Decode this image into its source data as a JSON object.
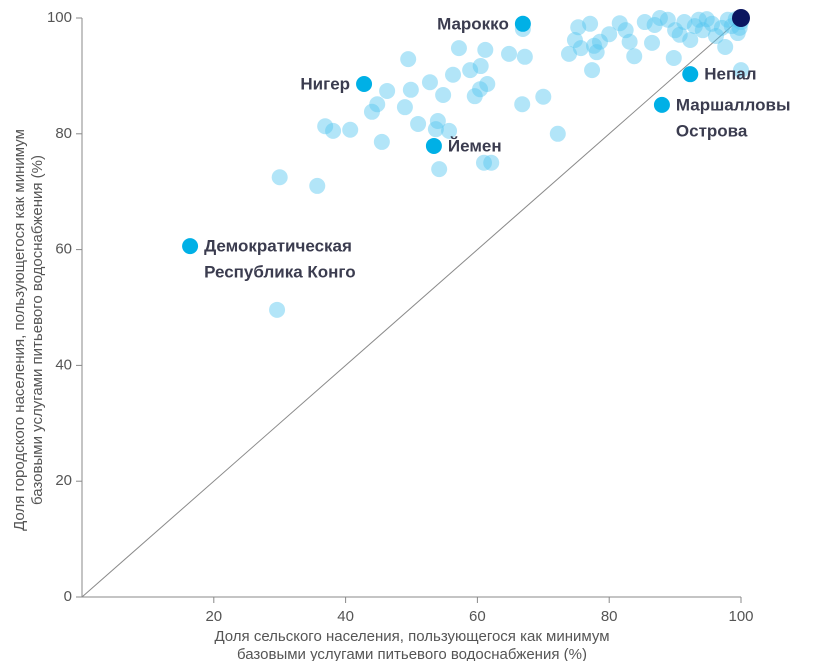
{
  "chart_data": {
    "type": "scatter",
    "xlabel": [
      "Доля сельского  населения, пользующегося как минимум",
      "базовыми услугами питьевого водоснабжения (%)"
    ],
    "ylabel": [
      "Доля городского населения, пользующегося как минимум",
      "базовыми услугами питьевого водоснабжения (%)"
    ],
    "xlim": [
      0,
      100
    ],
    "ylim": [
      0,
      100
    ],
    "xticks": [
      20,
      40,
      60,
      80,
      100
    ],
    "yticks": [
      0,
      20,
      40,
      60,
      80,
      100
    ],
    "series": [
      {
        "color": "#54c6ef",
        "x": [
          30.0,
          35.7,
          29.6,
          36.9,
          38.1,
          40.7,
          45.5,
          44.0,
          44.8,
          46.3,
          49.0,
          49.9,
          49.5,
          51.0,
          52.8,
          53.7,
          54.0,
          54.2,
          54.8,
          55.7,
          56.3,
          57.2,
          58.9,
          59.6,
          60.4,
          61.2,
          61.5,
          61.0,
          62.1,
          60.5,
          64.8,
          66.8,
          66.9,
          67.2,
          70.0,
          72.2,
          73.9,
          74.8,
          75.3,
          75.7,
          77.1,
          77.4,
          77.7,
          78.1,
          78.6,
          80.0,
          81.6,
          82.5,
          83.1,
          83.8,
          85.4,
          86.5,
          86.9,
          87.7,
          88.9,
          89.8,
          90.0,
          90.7,
          91.4,
          92.3,
          93.0,
          93.6,
          94.2,
          94.8,
          95.6,
          96.2,
          97.1,
          97.6,
          98.0,
          98.6,
          99.2,
          99.8,
          100,
          100,
          99.5
        ],
        "values": [
          72.5,
          71.0,
          49.6,
          81.3,
          80.5,
          80.7,
          78.6,
          83.8,
          85.1,
          87.4,
          84.6,
          87.6,
          92.9,
          81.7,
          88.9,
          80.8,
          82.2,
          73.9,
          86.7,
          80.5,
          90.2,
          94.8,
          91.0,
          86.5,
          87.7,
          94.5,
          88.6,
          75.0,
          75.0,
          91.7,
          93.8,
          85.1,
          98.1,
          93.3,
          86.4,
          80.0,
          93.8,
          96.2,
          98.4,
          94.8,
          99.0,
          91.0,
          95.2,
          94.1,
          95.9,
          97.2,
          99.1,
          97.9,
          95.9,
          93.4,
          99.3,
          95.7,
          98.8,
          100,
          99.7,
          93.1,
          97.9,
          97.1,
          99.3,
          96.2,
          98.6,
          99.7,
          97.9,
          99.8,
          99.0,
          96.9,
          98.3,
          95.0,
          99.7,
          98.6,
          99.8,
          98.3,
          91.0,
          99.3,
          97.4
        ]
      },
      {
        "color": "#00b0e6",
        "x": [
          66.9,
          42.8,
          53.4,
          16.4,
          92.3,
          88.0
        ],
        "values": [
          99.0,
          88.6,
          77.9,
          60.6,
          90.3,
          85.0
        ],
        "labels": [
          [
            "Марокко"
          ],
          [
            "Нигер"
          ],
          [
            "Йемен"
          ],
          [
            "Демократическая",
            "Республика Конго"
          ],
          [
            "Непал"
          ],
          [
            "Маршалловы",
            "Острова"
          ]
        ]
      },
      {
        "color": "#0b1660",
        "x": [
          100
        ],
        "values": [
          100
        ]
      }
    ]
  }
}
